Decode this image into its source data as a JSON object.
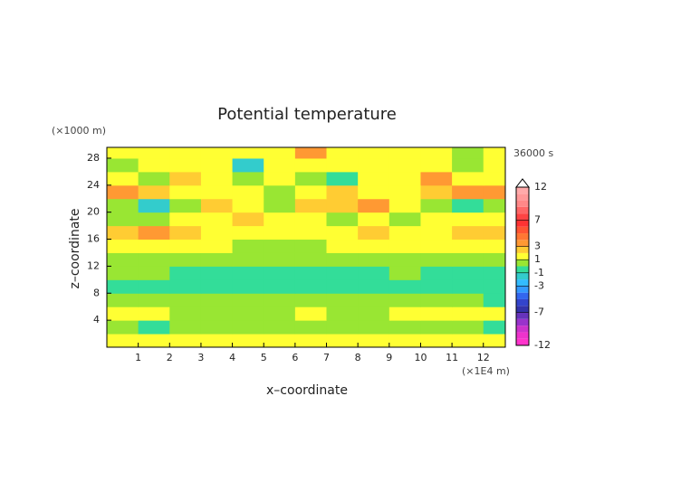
{
  "chart_data": {
    "type": "contour",
    "title": "Potential temperature",
    "x_label": "x–coordinate",
    "y_label": "z–coordinate",
    "x_unit": "(×1E4 m)",
    "y_unit": "(×1000 m)",
    "time_label": "36000 s",
    "xlim": [
      0,
      12.7
    ],
    "ylim": [
      0,
      29.6
    ],
    "xticks": [
      1,
      2,
      3,
      4,
      5,
      6,
      7,
      8,
      9,
      10,
      11,
      12
    ],
    "yticks": [
      4,
      8,
      12,
      16,
      20,
      24,
      28
    ],
    "x": [
      0.5,
      1.5,
      2.5,
      3.5,
      4.5,
      5.5,
      6.5,
      7.5,
      8.5,
      9.5,
      10.5,
      11.5,
      12.5
    ],
    "y": [
      1,
      3,
      5,
      7,
      9,
      11,
      13,
      15,
      17,
      19,
      21,
      23,
      25,
      27,
      29
    ],
    "values": [
      [
        1.5,
        1.5,
        1.5,
        1.5,
        1.5,
        1.5,
        1.5,
        1.5,
        1.5,
        1.5,
        1.5,
        1.5,
        1.5
      ],
      [
        0.5,
        -0.5,
        0.5,
        0.5,
        0.5,
        0.5,
        0.5,
        0.5,
        0.5,
        0.5,
        0.5,
        0.5,
        -0.5
      ],
      [
        1.5,
        1.5,
        0.5,
        0.5,
        0.5,
        0.5,
        1.5,
        0.5,
        0.5,
        1.5,
        1.5,
        1.5,
        1.5
      ],
      [
        0.5,
        0.5,
        0.5,
        0.5,
        0.5,
        0.5,
        0.5,
        0.5,
        0.5,
        0.5,
        0.5,
        0.5,
        -0.5
      ],
      [
        -0.5,
        -0.5,
        -0.5,
        -0.5,
        -0.5,
        -0.5,
        -0.5,
        -0.5,
        -0.5,
        -0.5,
        -0.5,
        -0.5,
        -0.5
      ],
      [
        0.5,
        0.5,
        -0.5,
        -0.5,
        -0.5,
        -0.5,
        -0.5,
        -0.5,
        -0.5,
        0.5,
        -0.5,
        -0.5,
        -0.5
      ],
      [
        0.5,
        0.5,
        0.5,
        0.5,
        0.5,
        0.5,
        0.5,
        0.5,
        0.5,
        0.5,
        0.5,
        0.5,
        0.5
      ],
      [
        1.5,
        1.5,
        1.5,
        1.5,
        0.5,
        0.5,
        0.5,
        1.5,
        1.5,
        1.5,
        1.5,
        1.5,
        1.5
      ],
      [
        2.5,
        3.5,
        2.5,
        1.5,
        1.5,
        1.5,
        1.5,
        1.5,
        2.5,
        1.5,
        1.5,
        2.5,
        2.5
      ],
      [
        0.5,
        0.5,
        1.5,
        1.5,
        2.5,
        1.5,
        1.5,
        0.5,
        1.5,
        0.5,
        1.5,
        1.5,
        1.5
      ],
      [
        0.5,
        -1.5,
        0.5,
        2.5,
        1.5,
        0.5,
        2.5,
        2.5,
        3.5,
        1.5,
        0.5,
        -0.5,
        0.5
      ],
      [
        3.5,
        2.5,
        1.5,
        1.5,
        1.5,
        0.5,
        1.5,
        2.5,
        1.5,
        1.5,
        2.5,
        3.5,
        3.5
      ],
      [
        1.5,
        0.5,
        2.5,
        1.5,
        0.5,
        1.5,
        0.5,
        -0.5,
        1.5,
        1.5,
        3.5,
        1.5,
        1.5
      ],
      [
        0.5,
        1.5,
        1.5,
        1.5,
        -1.5,
        1.5,
        1.5,
        1.5,
        1.5,
        1.5,
        1.5,
        0.5,
        1.5
      ],
      [
        1.5,
        1.5,
        1.5,
        1.5,
        1.5,
        1.5,
        3.5,
        1.5,
        1.5,
        1.5,
        1.5,
        0.5,
        1.5
      ]
    ],
    "colorbar": {
      "lim": [
        -12,
        12
      ],
      "step": 1,
      "ticks": [
        12,
        7,
        3,
        1,
        -1,
        -3,
        -7,
        -12
      ],
      "colors": [
        "#ff33cc",
        "#ee33cc",
        "#cc33cc",
        "#9933cc",
        "#6633bb",
        "#3333aa",
        "#3344cc",
        "#3366ee",
        "#3399ff",
        "#33bbff",
        "#33cccc",
        "#33dd99",
        "#99e633",
        "#ffff33",
        "#ffcc33",
        "#ff9933",
        "#ff7733",
        "#ff5533",
        "#ff3333",
        "#ff4444",
        "#ff6666",
        "#ff8888",
        "#ff9999",
        "#ffaaaa"
      ]
    }
  }
}
